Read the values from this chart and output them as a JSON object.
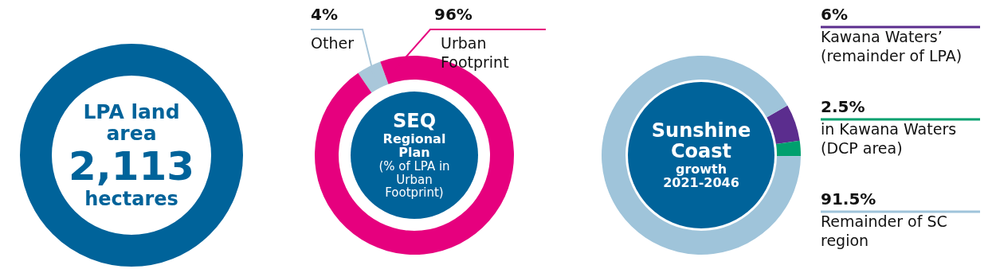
{
  "chart_data": [
    {
      "type": "other",
      "title": "LPA land area",
      "annotations": [
        "2,113",
        "hectares"
      ],
      "color": "#00639a"
    },
    {
      "type": "donut",
      "title": "SEQ",
      "subtitle": "Regional Plan",
      "annotations": [
        "(% of LPA in Urban Footprint)"
      ],
      "categories": [
        "Other",
        "Urban Footprint"
      ],
      "values": [
        4,
        96
      ],
      "colors": [
        "#a9c7da",
        "#e6007e"
      ],
      "value_labels": [
        "4%",
        "96%"
      ],
      "legend": false
    },
    {
      "type": "donut",
      "title": "Sunshine Coast",
      "subtitle": "growth 2021-2046",
      "categories": [
        "Kawana Waters’ (remainder of LPA)",
        "in Kawana Waters (DCP area)",
        "Remainder of SC region"
      ],
      "values": [
        6,
        2.5,
        91.5
      ],
      "colors": [
        "#5b2d8e",
        "#00a06e",
        "#9fc4da"
      ],
      "value_labels": [
        "6%",
        "2.5%",
        "91.5%"
      ],
      "legend": false
    }
  ]
}
